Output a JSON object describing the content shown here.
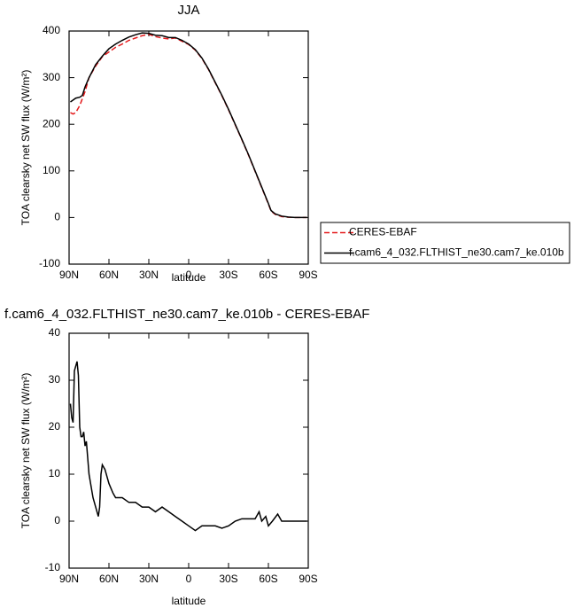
{
  "chart_data": [
    {
      "type": "line",
      "title": "JJA",
      "xlabel": "latitude",
      "ylabel": "TOA clearsky net SW flux (W/m²)",
      "x": [
        89,
        87,
        85,
        82,
        80,
        78,
        75,
        70,
        65,
        60,
        55,
        50,
        45,
        40,
        35,
        30,
        25,
        20,
        15,
        10,
        5,
        0,
        -5,
        -10,
        -15,
        -20,
        -25,
        -30,
        -35,
        -40,
        -45,
        -50,
        -55,
        -60,
        -62,
        -65,
        -70,
        -75,
        -80,
        -85,
        -89
      ],
      "series": [
        {
          "name": "CERES-EBAF",
          "color": "#e41a1c",
          "line_style": "dashed",
          "values": [
            225,
            222,
            225,
            240,
            255,
            270,
            300,
            325,
            345,
            355,
            365,
            372,
            380,
            385,
            390,
            393,
            388,
            385,
            383,
            385,
            378,
            371,
            359,
            341,
            317,
            289,
            261,
            231,
            199,
            167,
            134,
            99,
            64,
            29,
            14,
            7,
            2,
            0.5,
            0,
            0,
            0
          ]
        },
        {
          "name": "f.cam6_4_032.FLTHIST_ne30.cam7_ke.010b",
          "color": "#000000",
          "line_style": "solid",
          "values": [
            248,
            252,
            256,
            258,
            262,
            280,
            300,
            328,
            346,
            362,
            372,
            380,
            387,
            392,
            396,
            395,
            391,
            390,
            386,
            386,
            380,
            372,
            360,
            342,
            318,
            290,
            262,
            232,
            200,
            168,
            135,
            100,
            65,
            30,
            15,
            8,
            3,
            1,
            0,
            0,
            0
          ]
        }
      ],
      "xlim": [
        90,
        -90
      ],
      "xticks": [
        {
          "value": 90,
          "label": "90N"
        },
        {
          "value": 60,
          "label": "60N"
        },
        {
          "value": 30,
          "label": "30N"
        },
        0,
        {
          "value": -30,
          "label": "30S"
        },
        {
          "value": -60,
          "label": "60S"
        },
        {
          "value": -90,
          "label": "90S"
        }
      ],
      "ylim": [
        -100,
        400
      ],
      "yticks": [
        -100,
        0,
        100,
        200,
        300,
        400
      ],
      "legend": "right"
    },
    {
      "type": "line",
      "title": "f.cam6_4_032.FLTHIST_ne30.cam7_ke.010b - CERES-EBAF",
      "xlabel": "latitude",
      "ylabel": "TOA clearsky net SW flux (W/m²)",
      "x": [
        89,
        88,
        87,
        86,
        85,
        84,
        83,
        82,
        81,
        80,
        79,
        78,
        77,
        75,
        72,
        70,
        68,
        67,
        66,
        65,
        63,
        60,
        57,
        55,
        50,
        45,
        40,
        35,
        30,
        25,
        20,
        15,
        10,
        5,
        0,
        -5,
        -10,
        -15,
        -20,
        -25,
        -30,
        -35,
        -40,
        -45,
        -50,
        -53,
        -55,
        -58,
        -60,
        -63,
        -67,
        -70,
        -75,
        -80,
        -89
      ],
      "color": "#000000",
      "values": [
        25,
        22,
        21,
        32,
        33,
        34,
        31,
        20,
        18,
        18,
        19,
        16,
        17,
        10,
        5,
        3,
        1,
        3,
        10,
        12,
        11,
        8,
        6,
        5,
        5,
        4,
        4,
        3,
        3,
        2,
        3,
        2,
        1,
        0,
        -1,
        -2,
        -1,
        -1,
        -1,
        -1.5,
        -1,
        0,
        0.5,
        0.5,
        0.5,
        2,
        0,
        1,
        -1,
        0,
        1.5,
        0,
        0,
        0,
        0
      ],
      "xlim": [
        90,
        -90
      ],
      "xticks": [
        {
          "value": 90,
          "label": "90N"
        },
        {
          "value": 60,
          "label": "60N"
        },
        {
          "value": 30,
          "label": "30N"
        },
        0,
        {
          "value": -30,
          "label": "30S"
        },
        {
          "value": -60,
          "label": "60S"
        },
        {
          "value": -90,
          "label": "90S"
        }
      ],
      "ylim": [
        -10,
        40
      ],
      "yticks": [
        -10,
        0,
        10,
        20,
        30,
        40
      ]
    }
  ]
}
